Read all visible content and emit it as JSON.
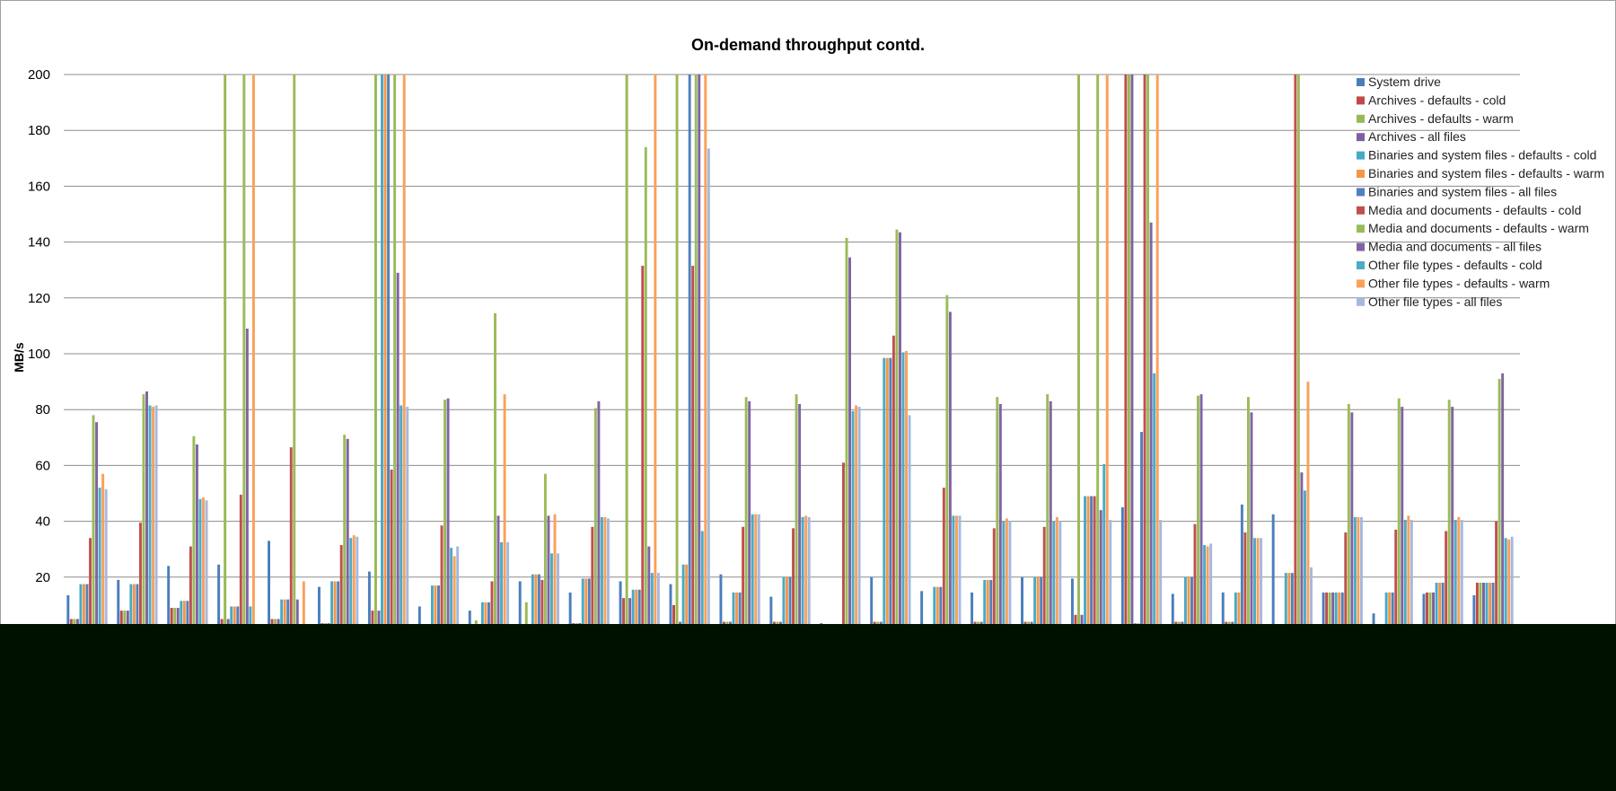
{
  "chart_data": {
    "type": "bar",
    "title": "On-demand throughput contd.",
    "ylabel": "MB/s",
    "xlabel": "",
    "ylim": [
      0,
      200
    ],
    "yticks": [
      20,
      40,
      60,
      80,
      100,
      120,
      140,
      160,
      180,
      200
    ],
    "grid": true,
    "legend_position": "top-right",
    "categories": [
      "",
      "",
      "",
      "",
      "",
      "",
      "",
      "",
      "",
      "",
      "",
      "",
      "",
      "",
      "",
      "",
      "",
      "",
      "",
      "",
      "",
      "",
      "",
      "",
      "",
      "",
      "",
      "",
      ""
    ],
    "series": [
      {
        "name": "System drive",
        "color": "#4a7ebb",
        "values": [
          13.5,
          19,
          24,
          24.5,
          33,
          16.5,
          22,
          9.5,
          8,
          18.5,
          14.5,
          18.5,
          17.5,
          21,
          13,
          3.5,
          20,
          15,
          14.5,
          20,
          19.5,
          45,
          14,
          14.5,
          42.5,
          14.5,
          7,
          14,
          13.5
        ]
      },
      {
        "name": "Archives - defaults - cold",
        "color": "#be4b48",
        "values": [
          5,
          8,
          9,
          5,
          5,
          3.5,
          8,
          2.5,
          1,
          3,
          3.5,
          12.5,
          10,
          4,
          4,
          2,
          4,
          2,
          4,
          4,
          6.5,
          200,
          4,
          4,
          2,
          14.5,
          2,
          14.5,
          18
        ]
      },
      {
        "name": "Archives - defaults - warm",
        "color": "#98b954",
        "values": [
          5,
          8,
          9,
          200,
          5,
          3.5,
          200,
          2.5,
          4.5,
          11,
          3.5,
          200,
          200,
          4,
          4,
          2,
          4,
          2,
          4,
          4,
          200,
          200,
          4,
          4,
          2,
          14.5,
          2,
          14.5,
          18
        ]
      },
      {
        "name": "Archives - all files",
        "color": "#7d60a0",
        "values": [
          5,
          8,
          9,
          5,
          5,
          3.5,
          8,
          2.5,
          1,
          3,
          3.5,
          12.5,
          4,
          4,
          4,
          2,
          4,
          2,
          4,
          4,
          6.5,
          200,
          4,
          4,
          2,
          14.5,
          2,
          14.5,
          18
        ]
      },
      {
        "name": "Binaries and system files - defaults - cold",
        "color": "#46aac5",
        "values": [
          17.5,
          17.5,
          11.5,
          9.5,
          12,
          18.5,
          200,
          17,
          11,
          21,
          19.5,
          15.5,
          24.5,
          14.5,
          20,
          1.5,
          98.5,
          16.5,
          19,
          20,
          49,
          3.5,
          20,
          14.5,
          21.5,
          14.5,
          14.5,
          18,
          18
        ]
      },
      {
        "name": "Binaries and system files - defaults - warm",
        "color": "#f79646",
        "values": [
          17.5,
          17.5,
          11.5,
          9.5,
          12,
          18.5,
          200,
          17,
          11,
          21,
          19.5,
          15.5,
          24.5,
          14.5,
          20,
          1.5,
          98.5,
          16.5,
          19,
          20,
          49,
          3.5,
          20,
          14.5,
          21.5,
          14.5,
          14.5,
          18,
          18
        ]
      },
      {
        "name": "Binaries and system files - all files",
        "color": "#4f81bd",
        "values": [
          17.5,
          17.5,
          11.5,
          9.5,
          12,
          18.5,
          200,
          17,
          11,
          21,
          19.5,
          15.5,
          200,
          14.5,
          20,
          1.5,
          98.5,
          16.5,
          19,
          20,
          49,
          72,
          20,
          46,
          21.5,
          14.5,
          14.5,
          18,
          18
        ]
      },
      {
        "name": "Media and documents - defaults - cold",
        "color": "#c0504d",
        "values": [
          34,
          39.5,
          31,
          49.5,
          66.5,
          31.5,
          58.5,
          38.5,
          18.5,
          19,
          38,
          131.5,
          131.5,
          38,
          37.5,
          61,
          106.5,
          52,
          37.5,
          38,
          49,
          200,
          39,
          36,
          200,
          36,
          37,
          36.5,
          40
        ]
      },
      {
        "name": "Media and documents - defaults - warm",
        "color": "#9bbb59",
        "values": [
          78,
          85.5,
          70.5,
          200,
          200,
          71,
          200,
          83.5,
          114.5,
          57,
          80.5,
          174,
          200,
          84.5,
          85.5,
          141.5,
          144.5,
          121,
          84.5,
          85.5,
          200,
          200,
          85,
          84.5,
          200,
          82,
          84,
          83.5,
          91
        ]
      },
      {
        "name": "Media and documents - all files",
        "color": "#8064a2",
        "values": [
          75.5,
          86.5,
          67.5,
          109,
          12,
          69.5,
          129,
          84,
          42,
          42,
          83,
          31,
          200,
          83,
          82,
          134.5,
          143.5,
          115,
          82,
          83,
          44,
          147,
          85.5,
          79,
          57.5,
          79,
          81,
          81,
          93
        ]
      },
      {
        "name": "Other file types - defaults - cold",
        "color": "#4bacc6",
        "values": [
          52,
          81.5,
          48,
          9.5,
          0.5,
          34,
          81.5,
          30.5,
          32.5,
          28.5,
          41.5,
          21.5,
          36.5,
          42.5,
          41.5,
          79.5,
          100.5,
          42,
          40,
          40,
          60.5,
          93,
          31.5,
          34,
          51,
          41.5,
          40.5,
          40.5,
          34
        ]
      },
      {
        "name": "Other file types - defaults - warm",
        "color": "#f9a15a",
        "values": [
          57,
          81,
          48.5,
          200,
          18.5,
          35,
          200,
          27.5,
          85.5,
          42.5,
          41.5,
          200,
          200,
          42.5,
          42,
          81.5,
          101,
          42,
          41,
          41.5,
          200,
          200,
          31,
          34,
          90,
          41.5,
          42,
          41.5,
          33.5
        ]
      },
      {
        "name": "Other file types - all files",
        "color": "#a5b8df",
        "values": [
          51.5,
          81.5,
          47.5,
          0.5,
          0.5,
          34.5,
          81,
          31,
          32.5,
          28.5,
          41,
          21.5,
          173.5,
          42.5,
          41.5,
          81,
          78,
          42,
          40,
          40,
          40.5,
          40.5,
          32,
          34,
          23.5,
          41.5,
          40.5,
          40.5,
          34.5
        ]
      }
    ]
  }
}
